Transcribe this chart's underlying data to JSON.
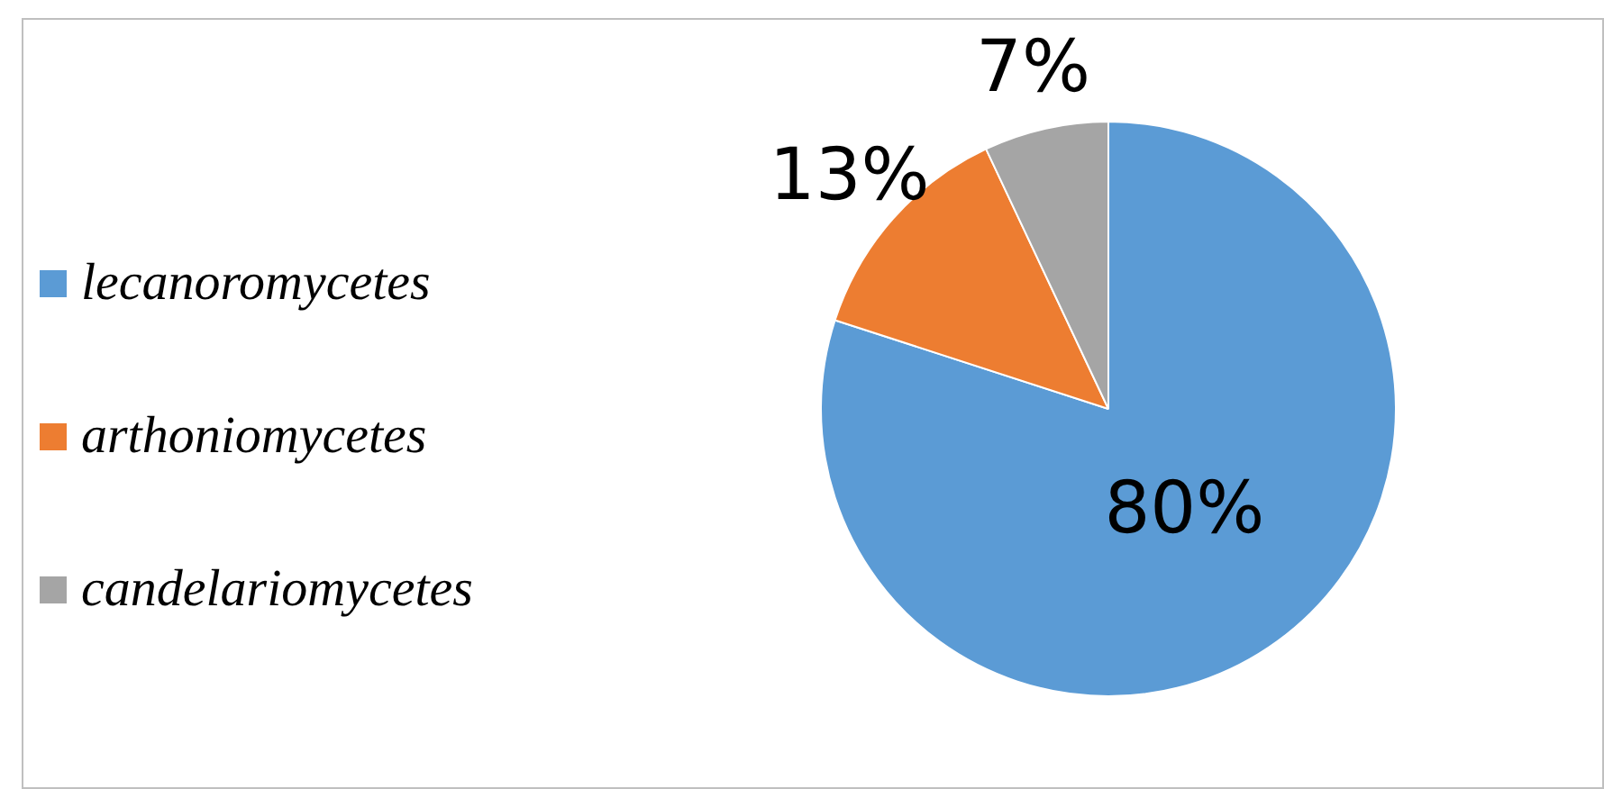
{
  "chart_data": {
    "type": "pie",
    "categories": [
      "lecanoromycetes",
      "arthoniomycetes",
      "candelariomycetes"
    ],
    "values": [
      80,
      13,
      7
    ],
    "colors": [
      "#5b9bd5",
      "#ed7d31",
      "#a5a5a5"
    ],
    "value_labels": [
      "80%",
      "13%",
      "7%"
    ],
    "legend": "left"
  }
}
